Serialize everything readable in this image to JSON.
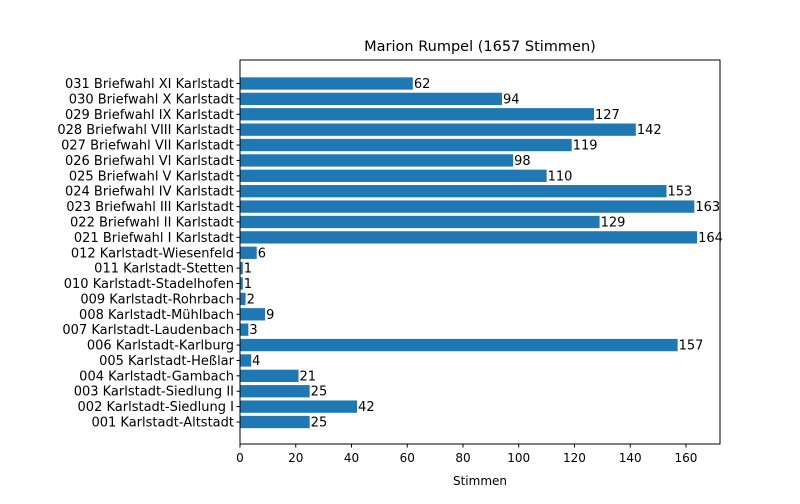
{
  "chart_data": {
    "type": "bar",
    "orientation": "horizontal",
    "title": "Marion Rumpel (1657 Stimmen)",
    "xlabel": "Stimmen",
    "ylabel": "",
    "xlim": [
      0,
      172.2
    ],
    "xticks": [
      0,
      20,
      40,
      60,
      80,
      100,
      120,
      140,
      160
    ],
    "grid": false,
    "bar_color": "#1f77b4",
    "categories": [
      "001 Karlstadt-Altstadt",
      "002 Karlstadt-Siedlung I",
      "003 Karlstadt-Siedlung II",
      "004 Karlstadt-Gambach",
      "005 Karlstadt-Heßlar",
      "006 Karlstadt-Karlburg",
      "007 Karlstadt-Laudenbach",
      "008 Karlstadt-Mühlbach",
      "009 Karlstadt-Rohrbach",
      "010 Karlstadt-Stadelhofen",
      "011 Karlstadt-Stetten",
      "012 Karlstadt-Wiesenfeld",
      "021 Briefwahl I Karlstadt",
      "022 Briefwahl II Karlstadt",
      "023 Briefwahl III Karlstadt",
      "024 Briefwahl IV Karlstadt",
      "025 Briefwahl V Karlstadt",
      "026 Briefwahl VI Karlstadt",
      "027 Briefwahl VII Karlstadt",
      "028 Briefwahl VIII Karlstadt",
      "029 Briefwahl IX Karlstadt",
      "030 Briefwahl X Karlstadt",
      "031 Briefwahl XI Karlstadt"
    ],
    "values": [
      25,
      42,
      25,
      21,
      4,
      157,
      3,
      9,
      2,
      1,
      1,
      6,
      164,
      129,
      163,
      153,
      110,
      98,
      119,
      142,
      127,
      94,
      62
    ]
  }
}
